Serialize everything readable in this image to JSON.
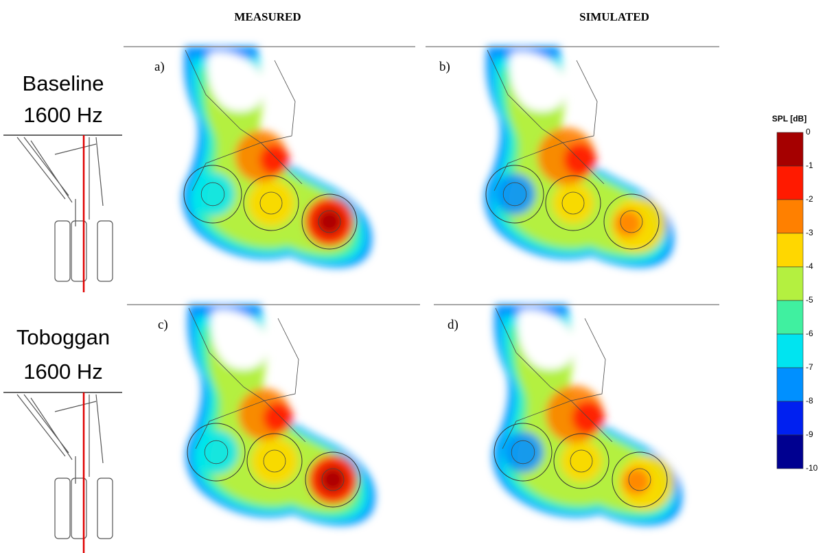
{
  "headers": {
    "measured": "MEASURED",
    "simulated": "SIMULATED"
  },
  "rows": [
    {
      "line1": "Baseline",
      "line2": "1600 Hz"
    },
    {
      "line1": "Toboggan",
      "line2": "1600 Hz"
    }
  ],
  "panels": [
    "a)",
    "b)",
    "c)",
    "d)"
  ],
  "colorbar": {
    "title": "SPL [dB]",
    "ticks": [
      0,
      -1,
      -2,
      -3,
      -4,
      -5,
      -6,
      -7,
      -8,
      -9,
      -10
    ],
    "colors": [
      "#a50000",
      "#ff1a00",
      "#ff8000",
      "#ffd700",
      "#b4f040",
      "#40f0a0",
      "#00e4f0",
      "#0090ff",
      "#0020f0",
      "#000090"
    ]
  }
}
